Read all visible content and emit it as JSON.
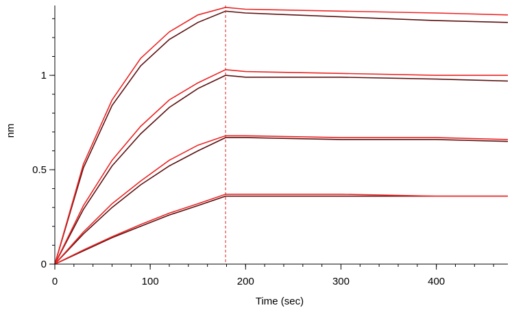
{
  "chart_data": {
    "type": "line",
    "title": "",
    "xlabel": "Time (sec)",
    "ylabel": "nm",
    "xlim": [
      0,
      475
    ],
    "ylim": [
      0,
      1.37
    ],
    "x_ticks": [
      {
        "value": 0,
        "label": "0"
      },
      {
        "value": 100,
        "label": "100"
      },
      {
        "value": 200,
        "label": "200"
      },
      {
        "value": 300,
        "label": "300"
      },
      {
        "value": 400,
        "label": "400"
      }
    ],
    "y_ticks": [
      {
        "value": 0,
        "label": "0"
      },
      {
        "value": 0.5,
        "label": "0.5"
      },
      {
        "value": 1,
        "label": "1"
      }
    ],
    "y_minor_step": 0.1,
    "x_minor_step": 20,
    "grid": false,
    "legend": "none",
    "vertical_marker_x": 179,
    "colors": {
      "fit": "#ee2222",
      "data": "#5a1010",
      "marker": "#dd2222",
      "axis": "#000000"
    },
    "series": [
      {
        "role": "data",
        "x": [
          0,
          30,
          60,
          90,
          120,
          150,
          179,
          200,
          300,
          400,
          475
        ],
        "y": [
          0,
          0.51,
          0.84,
          1.05,
          1.19,
          1.28,
          1.34,
          1.33,
          1.31,
          1.29,
          1.28
        ]
      },
      {
        "role": "fit",
        "x": [
          0,
          30,
          60,
          90,
          120,
          150,
          179,
          200,
          300,
          400,
          475
        ],
        "y": [
          0,
          0.53,
          0.87,
          1.09,
          1.23,
          1.32,
          1.36,
          1.35,
          1.34,
          1.33,
          1.32
        ]
      },
      {
        "role": "data",
        "x": [
          0,
          30,
          60,
          90,
          120,
          150,
          179,
          200,
          300,
          400,
          475
        ],
        "y": [
          0,
          0.29,
          0.52,
          0.69,
          0.83,
          0.93,
          1.0,
          0.99,
          0.99,
          0.98,
          0.97
        ]
      },
      {
        "role": "fit",
        "x": [
          0,
          30,
          60,
          90,
          120,
          150,
          179,
          200,
          300,
          400,
          475
        ],
        "y": [
          0,
          0.31,
          0.55,
          0.73,
          0.87,
          0.96,
          1.03,
          1.02,
          1.01,
          1.0,
          1.0
        ]
      },
      {
        "role": "data",
        "x": [
          0,
          30,
          60,
          90,
          120,
          150,
          179,
          200,
          300,
          400,
          475
        ],
        "y": [
          0,
          0.16,
          0.3,
          0.42,
          0.52,
          0.6,
          0.67,
          0.67,
          0.66,
          0.66,
          0.65
        ]
      },
      {
        "role": "fit",
        "x": [
          0,
          30,
          60,
          90,
          120,
          150,
          179,
          200,
          300,
          400,
          475
        ],
        "y": [
          0,
          0.17,
          0.32,
          0.44,
          0.55,
          0.63,
          0.68,
          0.68,
          0.67,
          0.67,
          0.66
        ]
      },
      {
        "role": "data",
        "x": [
          0,
          30,
          60,
          90,
          120,
          150,
          179,
          200,
          300,
          400,
          475
        ],
        "y": [
          0,
          0.07,
          0.14,
          0.2,
          0.26,
          0.31,
          0.36,
          0.36,
          0.36,
          0.36,
          0.36
        ]
      },
      {
        "role": "fit",
        "x": [
          0,
          30,
          60,
          90,
          120,
          150,
          179,
          200,
          300,
          400,
          475
        ],
        "y": [
          0,
          0.075,
          0.145,
          0.21,
          0.27,
          0.32,
          0.37,
          0.37,
          0.37,
          0.36,
          0.36
        ]
      }
    ]
  }
}
